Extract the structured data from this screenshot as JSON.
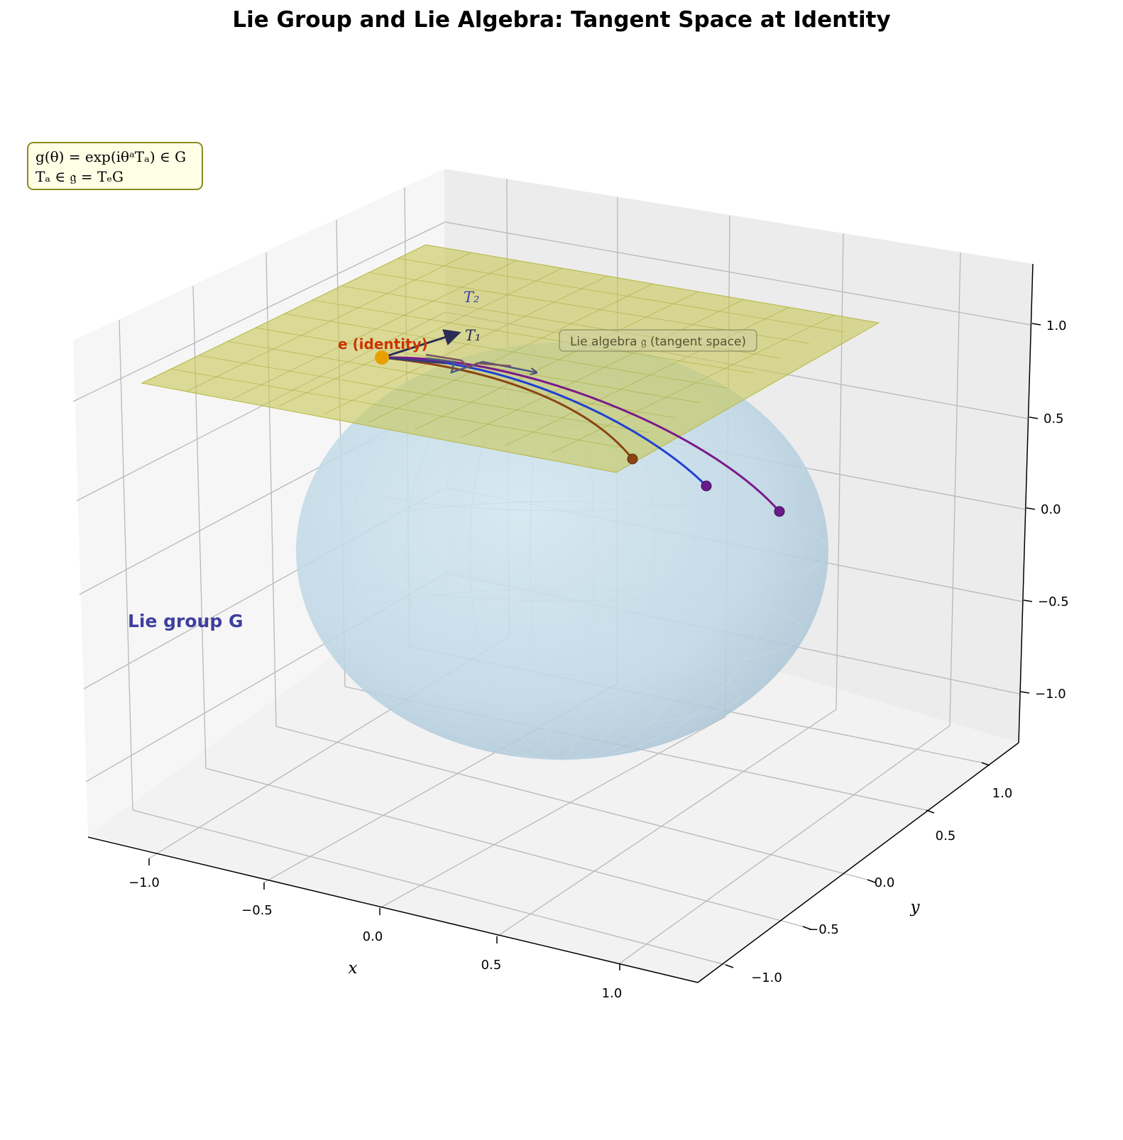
{
  "title": "Lie Group and Lie Algebra: Tangent Space at Identity",
  "formula": {
    "line1": "g(θ) = exp(iθᵃTₐ) ∈ G",
    "line2": "Tₐ ∈ 𝔤 = TₑG"
  },
  "labels": {
    "identity": "e (identity)",
    "t1": "T₁",
    "t2": "T₂",
    "lie_algebra": "Lie algebra 𝔤 (tangent space)",
    "lie_group": "Lie group G"
  },
  "axes": {
    "x": {
      "label": "x",
      "ticks": [
        "−1.0",
        "−0.5",
        "0.0",
        "0.5",
        "1.0"
      ]
    },
    "y": {
      "label": "y",
      "ticks": [
        "−1.0",
        "−0.5",
        "0.0",
        "0.5",
        "1.0"
      ]
    },
    "z": {
      "ticks": [
        "−1.0",
        "−0.5",
        "0.0",
        "0.5",
        "1.0"
      ]
    }
  },
  "colors": {
    "sphere": "#a9cfe6",
    "plane": "#c8c85a",
    "identity": "#e8a000",
    "identity_label": "#cc3300",
    "arrow": "#2b2d55",
    "path_brown": "#8b4513",
    "path_blue": "#1f2fe0",
    "path_purple": "#7a1a8a",
    "lie_group_label": "#3f3fa0",
    "formula_bg": "#ffffe6",
    "formula_border": "#8b8b1f"
  }
}
